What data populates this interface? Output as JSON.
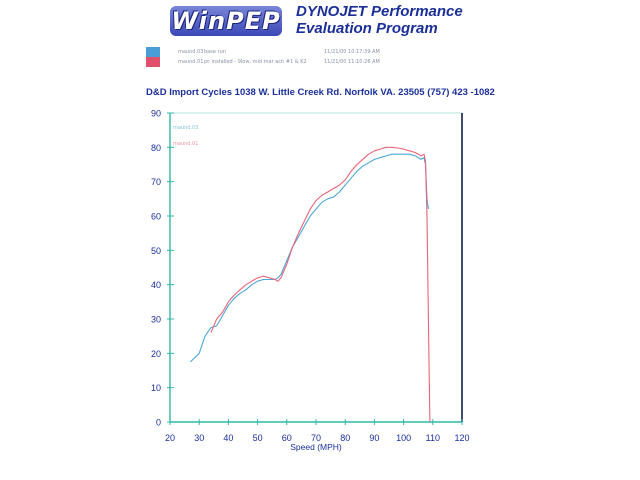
{
  "header": {
    "logo_text": "WinPEP",
    "title_line1": "DYNOJET Performance",
    "title_line2": "Evaluation Program"
  },
  "legend": {
    "runs": [
      {
        "run": "maund.03",
        "description": "base run",
        "date": "11/21/00 10:17:39 AM",
        "color": "#4a9ed8"
      },
      {
        "run": "maund.01",
        "description": "pc installed - 9low, mid mar ach #1 & K2",
        "date": "11/21/00 11:10:26 AM",
        "color": "#e0506a"
      }
    ]
  },
  "shop_info": "D&D Import Cycles 1038  W. Little Creek Rd. Norfolk VA.   23505   (757) 423 -1082",
  "chart_data": {
    "type": "line",
    "xlabel": "Speed (MPH)",
    "ylabel": "",
    "xlim": [
      20,
      120
    ],
    "ylim": [
      0,
      90
    ],
    "x_ticks": [
      "20",
      "30",
      "40",
      "50",
      "60",
      "70",
      "80",
      "90",
      "100",
      "110",
      "120"
    ],
    "y_ticks": [
      "0",
      "10",
      "20",
      "30",
      "40",
      "50",
      "60",
      "70",
      "80",
      "90"
    ],
    "grid": false,
    "series": [
      {
        "name": "maund.03",
        "color": "#4aa8d8",
        "points": [
          [
            27,
            17.5
          ],
          [
            30,
            20
          ],
          [
            32,
            25
          ],
          [
            34,
            27.5
          ],
          [
            36,
            28
          ],
          [
            38,
            31
          ],
          [
            40,
            34
          ],
          [
            42,
            36
          ],
          [
            44,
            37.5
          ],
          [
            46,
            38.5
          ],
          [
            48,
            40
          ],
          [
            50,
            41
          ],
          [
            52,
            41.5
          ],
          [
            54,
            41.5
          ],
          [
            56,
            41.5
          ],
          [
            57,
            42
          ],
          [
            58,
            43
          ],
          [
            60,
            47
          ],
          [
            62,
            51
          ],
          [
            64,
            54
          ],
          [
            66,
            57
          ],
          [
            68,
            60
          ],
          [
            70,
            62
          ],
          [
            72,
            64
          ],
          [
            74,
            65
          ],
          [
            76,
            65.5
          ],
          [
            78,
            67
          ],
          [
            80,
            69
          ],
          [
            82,
            71
          ],
          [
            84,
            73
          ],
          [
            86,
            74.5
          ],
          [
            88,
            75.5
          ],
          [
            90,
            76.5
          ],
          [
            92,
            77
          ],
          [
            94,
            77.5
          ],
          [
            96,
            78
          ],
          [
            98,
            78
          ],
          [
            100,
            78
          ],
          [
            102,
            78
          ],
          [
            104,
            77.5
          ],
          [
            106,
            76.5
          ],
          [
            107,
            77
          ],
          [
            107.5,
            75
          ],
          [
            108,
            65
          ],
          [
            108.5,
            62
          ]
        ]
      },
      {
        "name": "maund.01",
        "color": "#e8647a",
        "points": [
          [
            34,
            26
          ],
          [
            36,
            30
          ],
          [
            38,
            32
          ],
          [
            40,
            35
          ],
          [
            42,
            37
          ],
          [
            44,
            38.5
          ],
          [
            46,
            40
          ],
          [
            48,
            41
          ],
          [
            50,
            42
          ],
          [
            52,
            42.5
          ],
          [
            54,
            42
          ],
          [
            56,
            41.5
          ],
          [
            57,
            41
          ],
          [
            58,
            42
          ],
          [
            60,
            46
          ],
          [
            62,
            51
          ],
          [
            64,
            55
          ],
          [
            66,
            58.5
          ],
          [
            68,
            62
          ],
          [
            70,
            64.5
          ],
          [
            72,
            66
          ],
          [
            74,
            67
          ],
          [
            76,
            68
          ],
          [
            78,
            69
          ],
          [
            80,
            70.5
          ],
          [
            82,
            73
          ],
          [
            84,
            75
          ],
          [
            86,
            76.5
          ],
          [
            88,
            78
          ],
          [
            90,
            79
          ],
          [
            92,
            79.5
          ],
          [
            94,
            80
          ],
          [
            96,
            80
          ],
          [
            98,
            79.8
          ],
          [
            100,
            79.5
          ],
          [
            102,
            79
          ],
          [
            104,
            78.5
          ],
          [
            106,
            77.5
          ],
          [
            107,
            78
          ],
          [
            107.5,
            76
          ],
          [
            108,
            60
          ],
          [
            108.5,
            30
          ],
          [
            109,
            0
          ]
        ]
      }
    ]
  }
}
